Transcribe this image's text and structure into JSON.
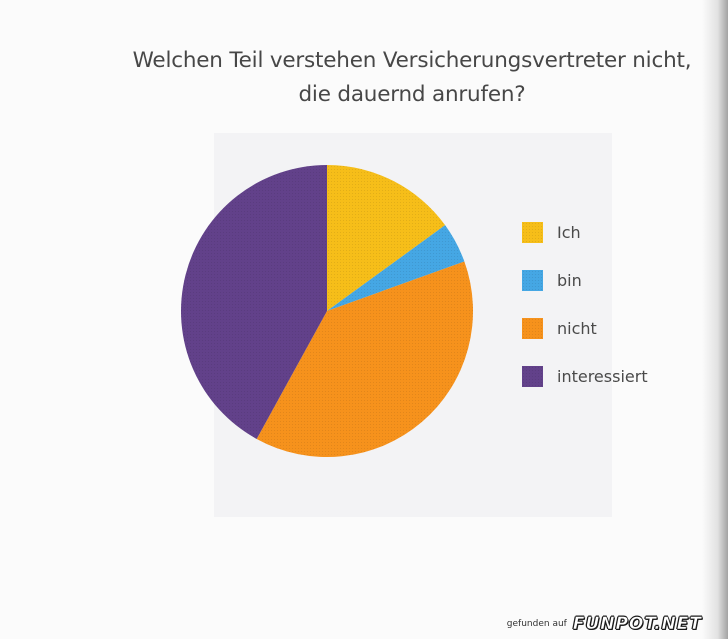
{
  "chart_data": {
    "type": "pie",
    "title": "Welchen Teil verstehen Versicherungsvertreter nicht, die dauernd anrufen?",
    "title_lines": [
      "Welchen Teil verstehen Versicherungsvertreter nicht,",
      "die dauernd anrufen?"
    ],
    "categories": [
      "Ich",
      "bin",
      "nicht",
      "interessiert"
    ],
    "values": [
      15,
      4.5,
      38.5,
      42
    ],
    "colors": [
      "#f6be19",
      "#45a7e4",
      "#f6921c",
      "#62418a"
    ],
    "legend_position": "right"
  },
  "footer": {
    "prefix": "gefunden auf",
    "logo": "FUNPOT.NET"
  }
}
